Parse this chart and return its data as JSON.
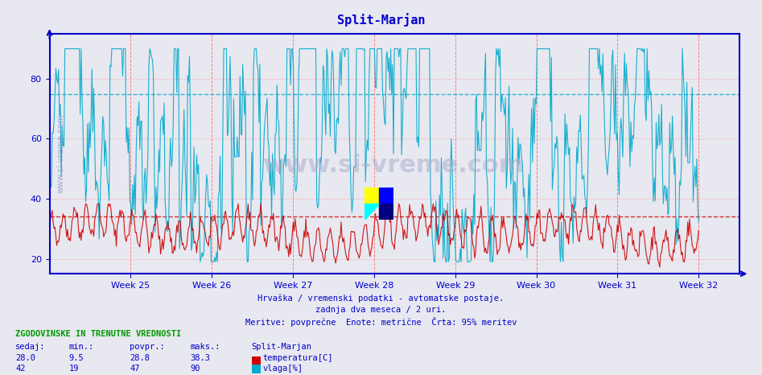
{
  "title": "Split-Marjan",
  "title_color": "#0000cc",
  "bg_color": "#e8e8f0",
  "plot_bg_color": "#e8e8f0",
  "ylim": [
    15,
    95
  ],
  "yticks": [
    20,
    40,
    60,
    80
  ],
  "week_labels": [
    "Week 25",
    "Week 26",
    "Week 27",
    "Week 28",
    "Week 29",
    "Week 30",
    "Week 31",
    "Week 32"
  ],
  "temp_color": "#cc0000",
  "humid_color": "#00aacc",
  "temp_95pct_line": 34.0,
  "humid_95pct_line": 75.0,
  "axis_color": "#0000cc",
  "temp_min": 9.5,
  "temp_max": 38.3,
  "temp_curr": 28.0,
  "temp_povpr": 28.8,
  "humid_min": 19,
  "humid_max": 90,
  "humid_curr": 42,
  "humid_povpr": 47,
  "subtitle1": "Hrvaška / vremenski podatki - avtomatske postaje.",
  "subtitle2": "zadnja dva meseca / 2 uri.",
  "subtitle3": "Meritve: povprečne  Enote: metrične  Črta: 95% meritev",
  "legend_title": "ZGODOVINSKE IN TRENUTNE VREDNOSTI",
  "col1": "sedaj:",
  "col2": "min.:",
  "col3": "povpr.:",
  "col4": "maks.:",
  "col5": "Split-Marjan",
  "watermark": "www.si-vreme.com",
  "n_points": 720
}
